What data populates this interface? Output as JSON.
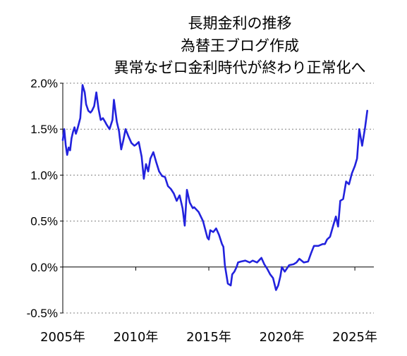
{
  "chart_data": {
    "type": "line",
    "title_lines": [
      "長期金利の推移",
      "為替王ブログ作成",
      "異常なゼロ金利時代が終わり正常化へ"
    ],
    "xlabel": "",
    "ylabel": "",
    "x_range": [
      2005.0,
      2026.3
    ],
    "ylim": [
      -0.5,
      2.0
    ],
    "y_ticks": [
      -0.5,
      0.0,
      0.5,
      1.0,
      1.5,
      2.0
    ],
    "y_tick_labels": [
      "-0.5%",
      "0.0%",
      "0.5%",
      "1.0%",
      "1.5%",
      "2.0%"
    ],
    "x_ticks": [
      2005,
      2010,
      2015,
      2020,
      2025
    ],
    "x_tick_labels": [
      "2005年",
      "2010年",
      "2015年",
      "2020年",
      "2025年"
    ],
    "grid": {
      "horizontal": true,
      "style": "dotted"
    },
    "legend": "none",
    "colors": {
      "line": "#2222dd",
      "grid": "#808080",
      "axis": "#000000"
    },
    "series": [
      {
        "x": [
          2005.0,
          2005.1,
          2005.2,
          2005.3,
          2005.4,
          2005.5,
          2005.6,
          2005.7,
          2005.8,
          2005.9,
          2006.0,
          2006.2,
          2006.35,
          2006.5,
          2006.6,
          2006.75,
          2006.9,
          2007.0,
          2007.15,
          2007.3,
          2007.45,
          2007.6,
          2007.75,
          2007.9,
          2008.0,
          2008.2,
          2008.4,
          2008.5,
          2008.7,
          2008.85,
          2009.0,
          2009.15,
          2009.3,
          2009.5,
          2009.7,
          2009.9,
          2010.0,
          2010.2,
          2010.4,
          2010.55,
          2010.7,
          2010.85,
          2011.0,
          2011.2,
          2011.4,
          2011.6,
          2011.8,
          2012.0,
          2012.2,
          2012.4,
          2012.6,
          2012.8,
          2013.0,
          2013.2,
          2013.35,
          2013.5,
          2013.7,
          2013.9,
          2014.0,
          2014.3,
          2014.6,
          2014.9,
          2015.0,
          2015.1,
          2015.3,
          2015.5,
          2015.7,
          2015.9,
          2016.0,
          2016.1,
          2016.3,
          2016.5,
          2016.6,
          2016.75,
          2016.9,
          2017.0,
          2017.2,
          2017.5,
          2017.8,
          2018.0,
          2018.3,
          2018.6,
          2018.8,
          2019.0,
          2019.2,
          2019.4,
          2019.6,
          2019.75,
          2019.9,
          2020.0,
          2020.2,
          2020.5,
          2020.8,
          2021.0,
          2021.2,
          2021.5,
          2021.8,
          2022.0,
          2022.2,
          2022.5,
          2022.8,
          2022.95,
          2023.1,
          2023.3,
          2023.5,
          2023.7,
          2023.85,
          2024.0,
          2024.2,
          2024.4,
          2024.6,
          2024.8,
          2025.0,
          2025.15,
          2025.3,
          2025.5,
          2025.7,
          2025.85
        ],
        "y": [
          1.38,
          1.5,
          1.33,
          1.22,
          1.3,
          1.27,
          1.4,
          1.47,
          1.52,
          1.45,
          1.5,
          1.62,
          1.98,
          1.9,
          1.77,
          1.7,
          1.68,
          1.7,
          1.75,
          1.9,
          1.72,
          1.6,
          1.62,
          1.58,
          1.55,
          1.5,
          1.6,
          1.82,
          1.58,
          1.48,
          1.28,
          1.38,
          1.5,
          1.42,
          1.35,
          1.32,
          1.33,
          1.36,
          1.2,
          0.96,
          1.12,
          1.04,
          1.18,
          1.25,
          1.14,
          1.04,
          0.99,
          0.98,
          0.88,
          0.85,
          0.8,
          0.72,
          0.78,
          0.64,
          0.45,
          0.84,
          0.7,
          0.64,
          0.65,
          0.6,
          0.5,
          0.32,
          0.3,
          0.4,
          0.38,
          0.42,
          0.35,
          0.25,
          0.22,
          0.02,
          -0.18,
          -0.2,
          -0.08,
          -0.05,
          0.0,
          0.05,
          0.06,
          0.07,
          0.05,
          0.07,
          0.05,
          0.1,
          0.03,
          -0.02,
          -0.08,
          -0.12,
          -0.25,
          -0.2,
          -0.1,
          0.0,
          -0.05,
          0.02,
          0.03,
          0.05,
          0.09,
          0.05,
          0.06,
          0.15,
          0.23,
          0.23,
          0.25,
          0.25,
          0.3,
          0.33,
          0.44,
          0.55,
          0.44,
          0.72,
          0.74,
          0.93,
          0.9,
          1.02,
          1.1,
          1.18,
          1.5,
          1.32,
          1.52,
          1.7
        ]
      }
    ]
  }
}
